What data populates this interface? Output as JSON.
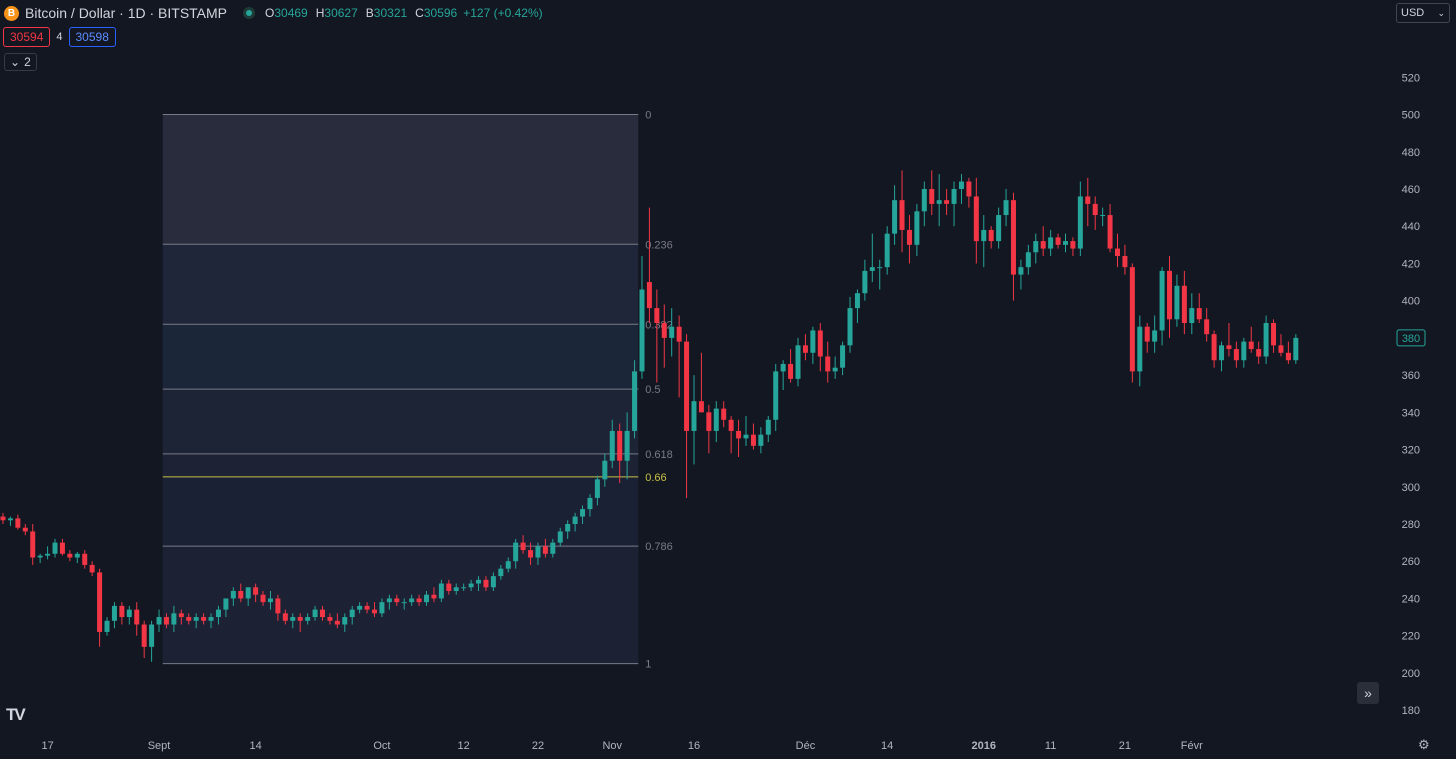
{
  "header": {
    "symbol": "Bitcoin / Dollar · 1D · BITSTAMP",
    "logo_letter": "B",
    "ohlc": [
      {
        "key": "O",
        "value": "30469"
      },
      {
        "key": "H",
        "value": "30627"
      },
      {
        "key": "B",
        "value": "30321"
      },
      {
        "key": "C",
        "value": "30596"
      }
    ],
    "change": "+127 (+0.42%)",
    "bid": "30594",
    "spread": "4",
    "ask": "30598",
    "indicators_toggle": "2",
    "currency": "USD"
  },
  "colors": {
    "up": "#26a69a",
    "down": "#f23645",
    "background": "#131722",
    "fib_line": "#787b86",
    "fib_066": "#c8c046"
  },
  "chart_data": {
    "type": "candlestick",
    "y_axis": {
      "ticks": [
        180,
        200,
        220,
        240,
        260,
        280,
        300,
        320,
        340,
        360,
        380,
        400,
        420,
        440,
        460,
        480,
        500,
        520
      ],
      "range": [
        172,
        532
      ]
    },
    "x_axis": {
      "ticks": [
        {
          "label": "17",
          "index": 6
        },
        {
          "label": "Sept",
          "index": 21
        },
        {
          "label": "14",
          "index": 34
        },
        {
          "label": "Oct",
          "index": 51
        },
        {
          "label": "12",
          "index": 62
        },
        {
          "label": "22",
          "index": 72
        },
        {
          "label": "Nov",
          "index": 82
        },
        {
          "label": "16",
          "index": 93
        },
        {
          "label": "Déc",
          "index": 108
        },
        {
          "label": "14",
          "index": 119
        },
        {
          "label": "2016",
          "index": 132,
          "bold": true
        },
        {
          "label": "11",
          "index": 141
        },
        {
          "label": "21",
          "index": 151
        },
        {
          "label": "Févr",
          "index": 160
        }
      ]
    },
    "last_price": "380",
    "candles": [
      [
        0,
        284,
        286,
        280,
        282
      ],
      [
        1,
        282,
        284,
        279,
        283
      ],
      [
        2,
        283,
        285,
        277,
        278
      ],
      [
        3,
        278,
        280,
        274,
        276
      ],
      [
        4,
        276,
        280,
        258,
        262
      ],
      [
        5,
        262,
        264,
        259,
        263
      ],
      [
        6,
        263,
        268,
        261,
        264
      ],
      [
        7,
        264,
        272,
        262,
        270
      ],
      [
        8,
        270,
        272,
        263,
        264
      ],
      [
        9,
        264,
        266,
        260,
        262
      ],
      [
        10,
        262,
        265,
        259,
        264
      ],
      [
        11,
        264,
        266,
        256,
        258
      ],
      [
        12,
        258,
        260,
        252,
        254
      ],
      [
        13,
        254,
        256,
        214,
        222
      ],
      [
        14,
        222,
        230,
        220,
        228
      ],
      [
        15,
        228,
        238,
        224,
        236
      ],
      [
        16,
        236,
        238,
        226,
        230
      ],
      [
        17,
        230,
        236,
        226,
        234
      ],
      [
        18,
        234,
        238,
        220,
        226
      ],
      [
        19,
        226,
        228,
        208,
        214
      ],
      [
        20,
        214,
        228,
        206,
        226
      ],
      [
        21,
        226,
        234,
        222,
        230
      ],
      [
        22,
        230,
        232,
        224,
        226
      ],
      [
        23,
        226,
        236,
        222,
        232
      ],
      [
        24,
        232,
        234,
        226,
        230
      ],
      [
        25,
        230,
        232,
        226,
        228
      ],
      [
        26,
        228,
        232,
        224,
        230
      ],
      [
        27,
        230,
        232,
        226,
        228
      ],
      [
        28,
        228,
        232,
        224,
        230
      ],
      [
        29,
        230,
        236,
        226,
        234
      ],
      [
        30,
        234,
        240,
        230,
        240
      ],
      [
        31,
        240,
        246,
        236,
        244
      ],
      [
        32,
        244,
        248,
        238,
        240
      ],
      [
        33,
        240,
        246,
        236,
        246
      ],
      [
        34,
        246,
        248,
        238,
        242
      ],
      [
        35,
        242,
        244,
        236,
        238
      ],
      [
        36,
        238,
        244,
        234,
        240
      ],
      [
        37,
        240,
        242,
        228,
        232
      ],
      [
        38,
        232,
        234,
        226,
        228
      ],
      [
        39,
        228,
        232,
        224,
        230
      ],
      [
        40,
        230,
        232,
        222,
        228
      ],
      [
        41,
        228,
        232,
        226,
        230
      ],
      [
        42,
        230,
        236,
        228,
        234
      ],
      [
        43,
        234,
        236,
        228,
        230
      ],
      [
        44,
        230,
        232,
        226,
        228
      ],
      [
        45,
        228,
        232,
        224,
        226
      ],
      [
        46,
        226,
        232,
        222,
        230
      ],
      [
        47,
        230,
        236,
        226,
        234
      ],
      [
        48,
        234,
        238,
        232,
        236
      ],
      [
        49,
        236,
        238,
        232,
        234
      ],
      [
        50,
        234,
        238,
        230,
        232
      ],
      [
        51,
        232,
        240,
        230,
        238
      ],
      [
        52,
        238,
        242,
        234,
        240
      ],
      [
        53,
        240,
        242,
        236,
        238
      ],
      [
        54,
        238,
        240,
        234,
        238
      ],
      [
        55,
        238,
        242,
        236,
        240
      ],
      [
        56,
        240,
        242,
        236,
        238
      ],
      [
        57,
        238,
        244,
        236,
        242
      ],
      [
        58,
        242,
        246,
        238,
        240
      ],
      [
        59,
        240,
        250,
        238,
        248
      ],
      [
        60,
        248,
        250,
        242,
        244
      ],
      [
        61,
        244,
        248,
        242,
        246
      ],
      [
        62,
        246,
        248,
        244,
        246
      ],
      [
        63,
        246,
        250,
        244,
        248
      ],
      [
        64,
        248,
        252,
        244,
        250
      ],
      [
        65,
        250,
        252,
        244,
        246
      ],
      [
        66,
        246,
        254,
        244,
        252
      ],
      [
        67,
        252,
        258,
        250,
        256
      ],
      [
        68,
        256,
        262,
        254,
        260
      ],
      [
        69,
        260,
        272,
        256,
        270
      ],
      [
        70,
        270,
        274,
        264,
        266
      ],
      [
        71,
        266,
        270,
        258,
        262
      ],
      [
        72,
        262,
        270,
        258,
        268
      ],
      [
        73,
        268,
        272,
        262,
        264
      ],
      [
        74,
        264,
        272,
        262,
        270
      ],
      [
        75,
        270,
        278,
        268,
        276
      ],
      [
        76,
        276,
        282,
        272,
        280
      ],
      [
        77,
        280,
        286,
        276,
        284
      ],
      [
        78,
        284,
        290,
        280,
        288
      ],
      [
        79,
        288,
        296,
        284,
        294
      ],
      [
        80,
        294,
        306,
        290,
        304
      ],
      [
        81,
        304,
        318,
        300,
        314
      ],
      [
        82,
        314,
        336,
        310,
        330
      ],
      [
        83,
        330,
        334,
        302,
        314
      ],
      [
        84,
        314,
        340,
        304,
        330
      ],
      [
        85,
        330,
        368,
        326,
        362
      ],
      [
        86,
        362,
        424,
        358,
        406
      ],
      [
        87,
        410,
        450,
        388,
        396
      ],
      [
        88,
        396,
        406,
        356,
        388
      ],
      [
        89,
        388,
        398,
        364,
        380
      ],
      [
        90,
        380,
        396,
        370,
        386
      ],
      [
        91,
        386,
        392,
        348,
        378
      ],
      [
        92,
        378,
        382,
        294,
        330
      ],
      [
        93,
        330,
        360,
        312,
        346
      ],
      [
        94,
        346,
        372,
        340,
        340
      ],
      [
        95,
        340,
        344,
        318,
        330
      ],
      [
        96,
        330,
        346,
        324,
        342
      ],
      [
        97,
        342,
        346,
        332,
        336
      ],
      [
        98,
        336,
        338,
        318,
        330
      ],
      [
        99,
        330,
        336,
        316,
        326
      ],
      [
        100,
        326,
        338,
        322,
        328
      ],
      [
        101,
        328,
        334,
        320,
        322
      ],
      [
        102,
        322,
        332,
        318,
        328
      ],
      [
        103,
        328,
        338,
        324,
        336
      ],
      [
        104,
        336,
        366,
        330,
        362
      ],
      [
        105,
        362,
        368,
        352,
        366
      ],
      [
        106,
        366,
        374,
        356,
        358
      ],
      [
        107,
        358,
        380,
        354,
        376
      ],
      [
        108,
        376,
        382,
        368,
        372
      ],
      [
        109,
        372,
        386,
        366,
        384
      ],
      [
        110,
        384,
        388,
        362,
        370
      ],
      [
        111,
        370,
        378,
        356,
        362
      ],
      [
        112,
        362,
        370,
        358,
        364
      ],
      [
        113,
        364,
        378,
        360,
        376
      ],
      [
        114,
        376,
        402,
        372,
        396
      ],
      [
        115,
        396,
        406,
        388,
        404
      ],
      [
        116,
        404,
        422,
        400,
        416
      ],
      [
        117,
        416,
        436,
        410,
        418
      ],
      [
        118,
        418,
        422,
        406,
        418
      ],
      [
        119,
        418,
        440,
        414,
        436
      ],
      [
        120,
        436,
        462,
        430,
        454
      ],
      [
        121,
        454,
        470,
        426,
        438
      ],
      [
        122,
        438,
        446,
        420,
        430
      ],
      [
        123,
        430,
        452,
        424,
        448
      ],
      [
        124,
        448,
        464,
        440,
        460
      ],
      [
        125,
        460,
        470,
        446,
        452
      ],
      [
        126,
        452,
        468,
        440,
        454
      ],
      [
        127,
        454,
        460,
        446,
        452
      ],
      [
        128,
        452,
        464,
        440,
        460
      ],
      [
        129,
        460,
        468,
        452,
        464
      ],
      [
        130,
        464,
        466,
        450,
        456
      ],
      [
        131,
        456,
        466,
        420,
        432
      ],
      [
        132,
        432,
        446,
        418,
        438
      ],
      [
        133,
        438,
        440,
        428,
        432
      ],
      [
        134,
        432,
        450,
        428,
        446
      ],
      [
        135,
        446,
        460,
        440,
        454
      ],
      [
        136,
        454,
        458,
        400,
        414
      ],
      [
        137,
        414,
        422,
        406,
        418
      ],
      [
        138,
        418,
        430,
        414,
        426
      ],
      [
        139,
        426,
        436,
        420,
        432
      ],
      [
        140,
        432,
        440,
        424,
        428
      ],
      [
        141,
        428,
        438,
        424,
        434
      ],
      [
        142,
        434,
        436,
        428,
        430
      ],
      [
        143,
        430,
        436,
        426,
        432
      ],
      [
        144,
        432,
        434,
        424,
        428
      ],
      [
        145,
        428,
        464,
        424,
        456
      ],
      [
        146,
        456,
        466,
        440,
        452
      ],
      [
        147,
        452,
        456,
        438,
        446
      ],
      [
        148,
        446,
        450,
        440,
        446
      ],
      [
        149,
        446,
        452,
        426,
        428
      ],
      [
        150,
        428,
        436,
        418,
        424
      ],
      [
        151,
        424,
        430,
        414,
        418
      ],
      [
        152,
        418,
        420,
        356,
        362
      ],
      [
        153,
        362,
        392,
        354,
        386
      ],
      [
        154,
        386,
        388,
        372,
        378
      ],
      [
        155,
        378,
        392,
        372,
        384
      ],
      [
        156,
        384,
        418,
        376,
        416
      ],
      [
        157,
        416,
        424,
        380,
        390
      ],
      [
        158,
        390,
        414,
        386,
        408
      ],
      [
        159,
        408,
        416,
        382,
        388
      ],
      [
        160,
        388,
        404,
        382,
        396
      ],
      [
        161,
        396,
        404,
        388,
        390
      ],
      [
        162,
        390,
        396,
        378,
        382
      ],
      [
        163,
        382,
        384,
        364,
        368
      ],
      [
        164,
        368,
        378,
        362,
        376
      ],
      [
        165,
        376,
        388,
        370,
        374
      ],
      [
        166,
        374,
        378,
        364,
        368
      ],
      [
        167,
        368,
        380,
        364,
        378
      ],
      [
        168,
        378,
        386,
        372,
        374
      ],
      [
        169,
        374,
        378,
        366,
        370
      ],
      [
        170,
        370,
        392,
        366,
        388
      ],
      [
        171,
        388,
        390,
        372,
        376
      ],
      [
        172,
        376,
        382,
        370,
        372
      ],
      [
        173,
        372,
        378,
        366,
        368
      ],
      [
        174,
        368,
        382,
        366,
        380
      ]
    ],
    "fibonacci": {
      "start_index": 21.5,
      "end_index": 85.5,
      "levels": [
        {
          "label": "0",
          "price": 500
        },
        {
          "label": "0.236",
          "price": 430.3
        },
        {
          "label": "0.382",
          "price": 387.3
        },
        {
          "label": "0.5",
          "price": 352.5
        },
        {
          "label": "0.618",
          "price": 317.7
        },
        {
          "label": "0.66",
          "price": 305.3,
          "highlight": true
        },
        {
          "label": "0.786",
          "price": 268.1
        },
        {
          "label": "1",
          "price": 205
        }
      ]
    }
  }
}
